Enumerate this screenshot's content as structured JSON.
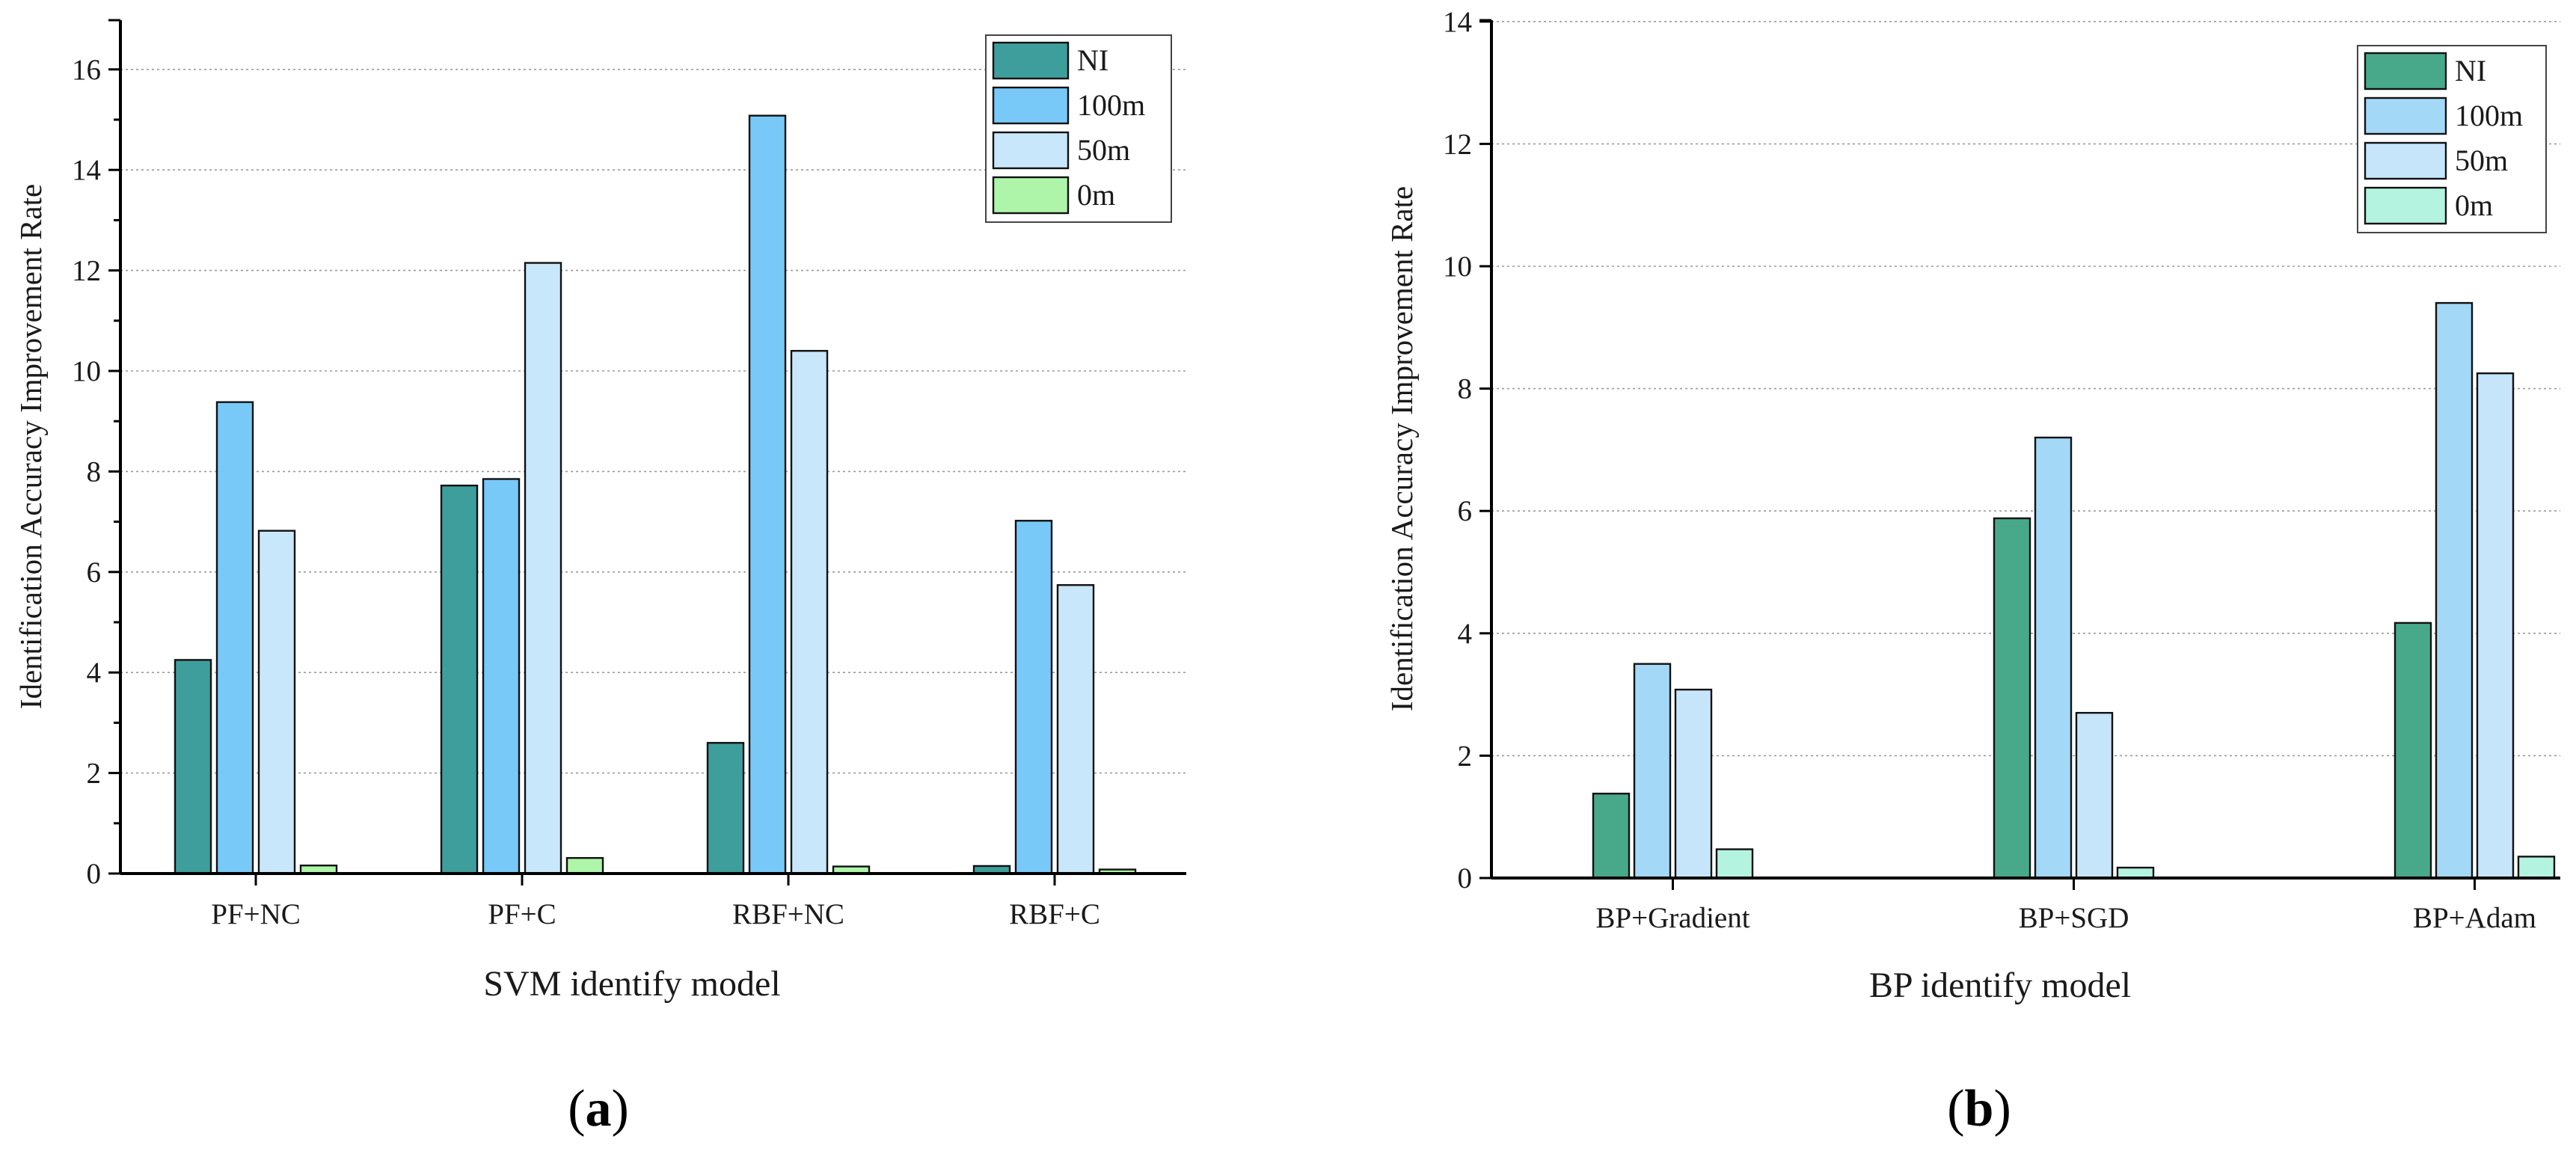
{
  "chart_data": [
    {
      "type": "bar",
      "title": "",
      "xlabel": "SVM identify model",
      "ylabel": "Identification Accuracy Improvement Rate",
      "caption_letter": "a",
      "ylim": [
        0,
        17
      ],
      "yticks": [
        0,
        2,
        4,
        6,
        8,
        10,
        12,
        14,
        16
      ],
      "ytick_labels": [
        "0",
        "2",
        "4",
        "6",
        "8",
        "10",
        "12",
        "14",
        "16"
      ],
      "grid": true,
      "legend_position": "top-right",
      "categories": [
        "PF+NC",
        "PF+C",
        "RBF+NC",
        "RBF+C"
      ],
      "series": [
        {
          "name": "NI",
          "color": "#3e9e9c",
          "values": [
            4.25,
            7.72,
            2.6,
            0.15
          ]
        },
        {
          "name": "100m",
          "color": "#78c9f7",
          "values": [
            9.38,
            7.85,
            15.08,
            7.02
          ]
        },
        {
          "name": "50m",
          "color": "#c8e7fb",
          "values": [
            6.82,
            12.15,
            10.4,
            5.74
          ]
        },
        {
          "name": "0m",
          "color": "#aef5a9",
          "values": [
            0.16,
            0.31,
            0.14,
            0.08
          ]
        }
      ]
    },
    {
      "type": "bar",
      "title": "",
      "xlabel": "BP identify model",
      "ylabel": "Identification Accuracy Improvement Rate",
      "caption_letter": "b",
      "ylim": [
        0,
        14
      ],
      "yticks": [
        0,
        2,
        4,
        6,
        8,
        10,
        12,
        14
      ],
      "ytick_labels": [
        "0",
        "2",
        "4",
        "6",
        "8",
        "10",
        "12",
        "14"
      ],
      "grid": true,
      "legend_position": "top-right",
      "categories": [
        "BP+Gradient",
        "BP+SGD",
        "BP+Adam"
      ],
      "series": [
        {
          "name": "NI",
          "color": "#47a98a",
          "values": [
            1.38,
            5.88,
            4.17
          ]
        },
        {
          "name": "100m",
          "color": "#a3d8f7",
          "values": [
            3.5,
            7.2,
            9.4
          ]
        },
        {
          "name": "50m",
          "color": "#c6e5fb",
          "values": [
            3.08,
            2.7,
            8.25
          ]
        },
        {
          "name": "0m",
          "color": "#b3f3e0",
          "values": [
            0.47,
            0.17,
            0.35
          ]
        }
      ]
    }
  ]
}
